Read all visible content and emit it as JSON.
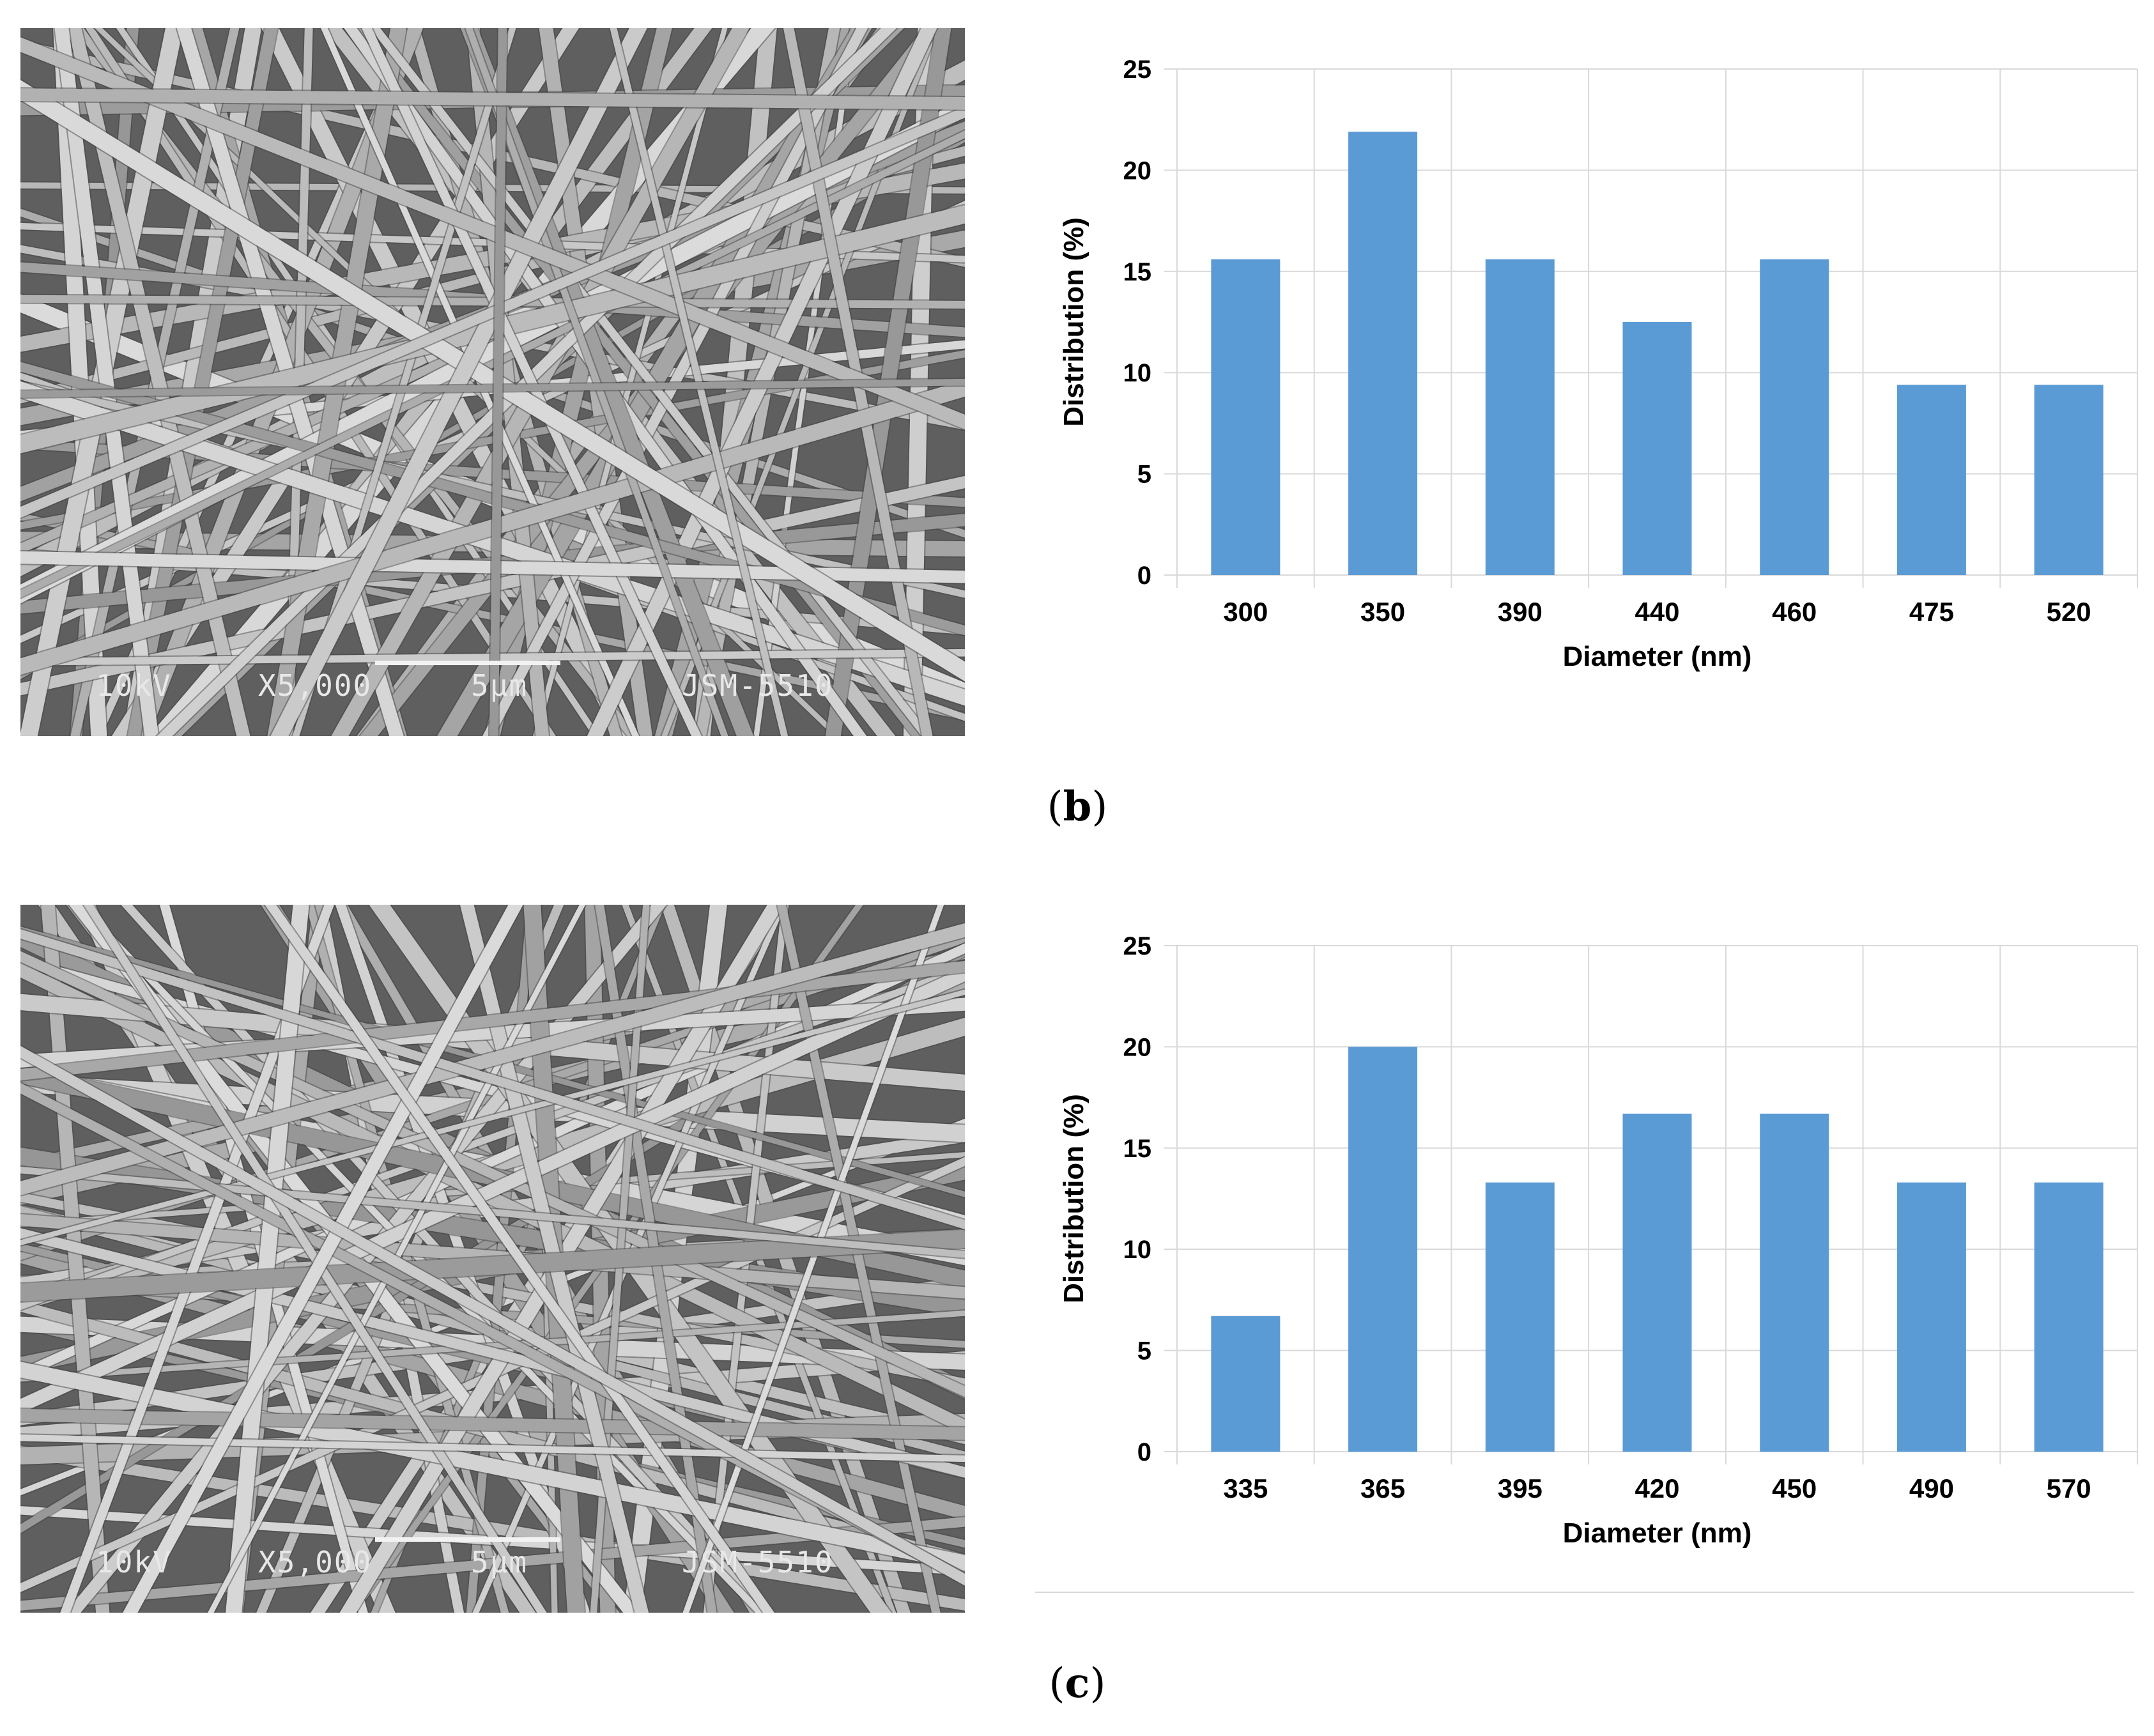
{
  "panels": [
    {
      "id": "b",
      "label_open": "(",
      "label_letter": "b",
      "label_close": ")",
      "sem": {
        "voltage": "10kV",
        "magnification": "X5,000",
        "scale": "5µm",
        "instrument": "JSM-5510"
      }
    },
    {
      "id": "c",
      "label_open": "(",
      "label_letter": "c",
      "label_close": ")",
      "sem": {
        "voltage": "10kV",
        "magnification": "X5,000",
        "scale": "5µm",
        "instrument": "JSM-5510"
      }
    }
  ],
  "colors": {
    "bar": "#5B9BD5",
    "grid": "#D9D9D9",
    "axis_text": "#000000"
  },
  "chart_data": [
    {
      "type": "bar",
      "categories": [
        "300",
        "350",
        "390",
        "440",
        "460",
        "475",
        "520"
      ],
      "values": [
        15.6,
        21.9,
        15.6,
        12.5,
        15.6,
        9.4,
        9.4
      ],
      "title": "",
      "xlabel": "Diameter (nm)",
      "ylabel": "Distribution (%)",
      "ylim": [
        0,
        25
      ],
      "yticks": [
        "0",
        "5",
        "10",
        "15",
        "20",
        "25"
      ],
      "grid": true
    },
    {
      "type": "bar",
      "categories": [
        "335",
        "365",
        "395",
        "420",
        "450",
        "490",
        "570"
      ],
      "values": [
        6.7,
        20.0,
        13.3,
        16.7,
        16.7,
        13.3,
        13.3
      ],
      "title": "",
      "xlabel": "Diameter (nm)",
      "ylabel": "Distribution (%)",
      "ylim": [
        0,
        25
      ],
      "yticks": [
        "0",
        "5",
        "10",
        "15",
        "20",
        "25"
      ],
      "grid": true
    }
  ]
}
